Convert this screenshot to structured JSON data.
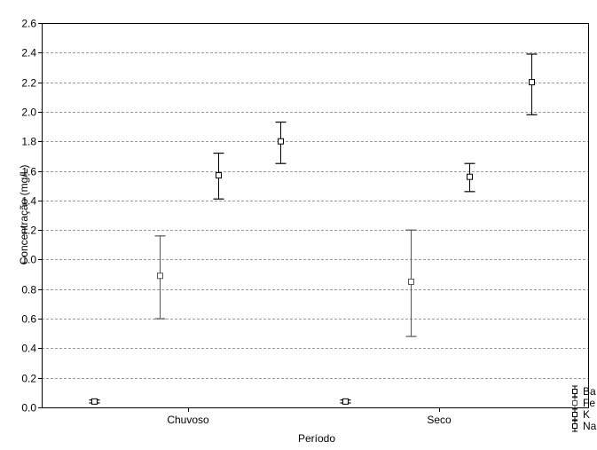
{
  "chart_data": {
    "type": "scatter",
    "title": "",
    "xlabel": "Período",
    "ylabel": "Concentração (mg/L)",
    "categories": [
      "Chuvoso",
      "Seco"
    ],
    "ylim": [
      0.0,
      2.6
    ],
    "yticks": [
      "0.0",
      "0.2",
      "0.4",
      "0.6",
      "0.8",
      "1.0",
      "1.2",
      "1.4",
      "1.6",
      "1.8",
      "2.0",
      "2.2",
      "2.4",
      "2.6"
    ],
    "grid": true,
    "legend_position": "bottom-right",
    "series": [
      {
        "name": "Ba",
        "color": "#000000",
        "mean": [
          0.04,
          0.04
        ],
        "low": [
          0.03,
          0.03
        ],
        "high": [
          0.05,
          0.05
        ]
      },
      {
        "name": "Fe",
        "color": "#555555",
        "mean": [
          0.89,
          0.85
        ],
        "low": [
          0.6,
          0.48
        ],
        "high": [
          1.16,
          1.2
        ]
      },
      {
        "name": "K",
        "color": "#000000",
        "mean": [
          1.57,
          1.56
        ],
        "low": [
          1.41,
          1.46
        ],
        "high": [
          1.72,
          1.65
        ]
      },
      {
        "name": "Na",
        "color": "#000000",
        "mean": [
          1.8,
          2.2
        ],
        "low": [
          1.65,
          1.98
        ],
        "high": [
          1.93,
          2.39
        ]
      }
    ],
    "legend": [
      "Ba",
      "Fe",
      "K",
      "Na"
    ]
  }
}
